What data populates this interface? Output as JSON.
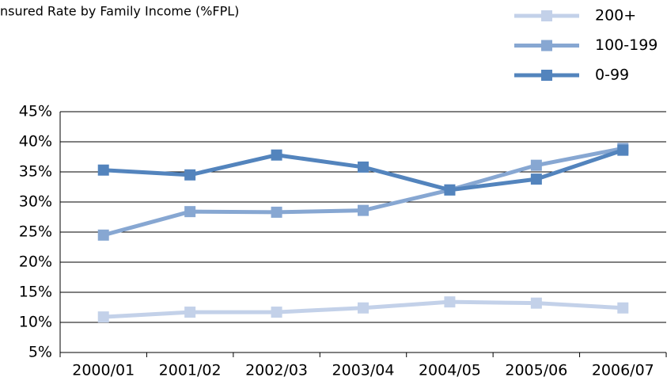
{
  "chart_data": {
    "type": "line",
    "title": "nsured Rate by Family Income (%FPL)",
    "categories": [
      "2000/01",
      "2001/02",
      "2002/03",
      "2003/04",
      "2004/05",
      "2005/06",
      "2006/07"
    ],
    "series": [
      {
        "name": "200+",
        "color": "#c3d1e9",
        "values": [
          10.9,
          11.7,
          11.7,
          12.4,
          13.4,
          13.2,
          12.4
        ]
      },
      {
        "name": "100-199",
        "color": "#87a7d2",
        "values": [
          24.5,
          28.4,
          28.3,
          28.6,
          32.0,
          36.1,
          38.9
        ]
      },
      {
        "name": "0-99",
        "color": "#5384bd",
        "values": [
          35.3,
          34.5,
          37.8,
          35.8,
          32.0,
          33.8,
          38.6
        ]
      }
    ],
    "ylim": [
      5,
      45
    ],
    "yticks": [
      {
        "value": 5,
        "label": "5%"
      },
      {
        "value": 10,
        "label": "10%"
      },
      {
        "value": 15,
        "label": "15%"
      },
      {
        "value": 20,
        "label": "20%"
      },
      {
        "value": 25,
        "label": "25%"
      },
      {
        "value": 30,
        "label": "30%"
      },
      {
        "value": 35,
        "label": "35%"
      },
      {
        "value": 40,
        "label": "40%"
      },
      {
        "value": 45,
        "label": "45%"
      }
    ],
    "grid": true
  }
}
